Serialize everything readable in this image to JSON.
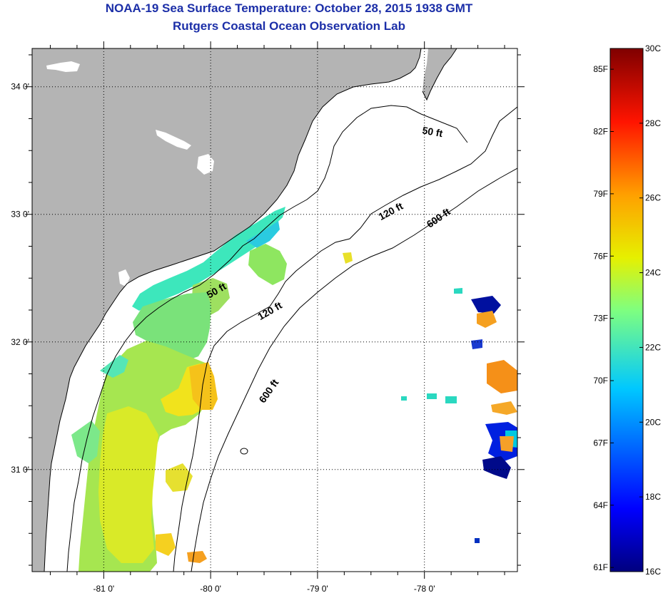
{
  "header": {
    "title": "NOAA-19 Sea Surface Temperature:  October 28, 2015 1938 GMT",
    "subtitle": "Rutgers Coastal Ocean Observation Lab"
  },
  "map": {
    "lon_range": [
      -81.67,
      -77.13
    ],
    "lat_range": [
      30.2,
      34.3
    ],
    "lat_ticks": [
      {
        "value": 34.0,
        "label": "34 0'"
      },
      {
        "value": 33.0,
        "label": "33 0'"
      },
      {
        "value": 32.0,
        "label": "32 0'"
      },
      {
        "value": 31.0,
        "label": "31 0'"
      }
    ],
    "lon_ticks": [
      {
        "value": -81.0,
        "label": "-81 0'"
      },
      {
        "value": -80.0,
        "label": "-80 0'"
      },
      {
        "value": -79.0,
        "label": "-79 0'"
      },
      {
        "value": -78.0,
        "label": "-78 0'"
      }
    ],
    "contour_labels": [
      {
        "text": "50 ft",
        "lon": -77.93,
        "lat": 33.62,
        "rot": 10
      },
      {
        "text": "120 ft",
        "lon": -78.3,
        "lat": 33.0,
        "rot": -28
      },
      {
        "text": "600 ft",
        "lon": -77.85,
        "lat": 32.95,
        "rot": -35
      },
      {
        "text": "50 ft",
        "lon": -79.93,
        "lat": 32.38,
        "rot": -30
      },
      {
        "text": "120 ft",
        "lon": -79.43,
        "lat": 32.22,
        "rot": -30
      },
      {
        "text": "600 ft",
        "lon": -79.43,
        "lat": 31.6,
        "rot": -55
      }
    ],
    "colors": {
      "land": "#b4b4b4",
      "water": "#ffffff",
      "grid": "#000000"
    }
  },
  "colorbar": {
    "f_labels": [
      "85F",
      "82F",
      "79F",
      "76F",
      "73F",
      "70F",
      "67F",
      "64F",
      "61F"
    ],
    "c_labels": [
      "30C",
      "28C",
      "26C",
      "24C",
      "22C",
      "20C",
      "18C",
      "16C"
    ],
    "c_range": [
      16,
      30
    ]
  }
}
